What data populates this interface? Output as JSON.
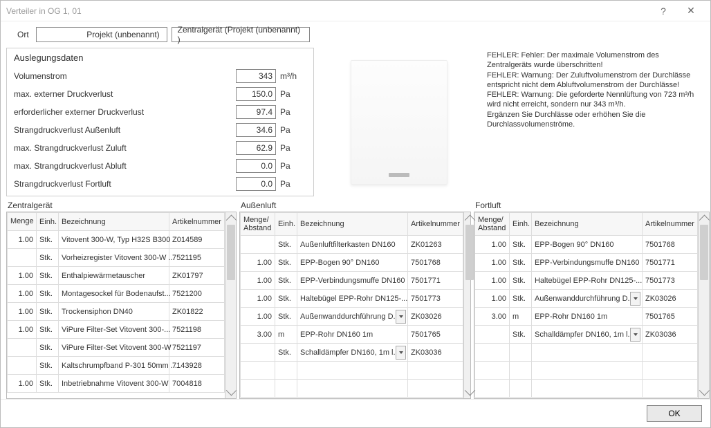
{
  "window_title": "Verteiler in OG 1, 01",
  "toolbar": {
    "ort_label": "Ort",
    "projekt": "Projekt (unbenannt)",
    "zentralgeraet": "Zentralgerät (Projekt (unbenannt) )"
  },
  "auslegung": {
    "heading": "Auslegungsdaten",
    "rows": [
      {
        "label": "Volumenstrom",
        "value": "343",
        "unit": "m³/h"
      },
      {
        "label": "max. externer Druckverlust",
        "value": "150.0",
        "unit": "Pa"
      },
      {
        "label": "erforderlicher externer Druckverlust",
        "value": "97.4",
        "unit": "Pa"
      },
      {
        "label": "Strangdruckverlust Außenluft",
        "value": "34.6",
        "unit": "Pa"
      },
      {
        "label": "max. Strangdruckverlust Zuluft",
        "value": "62.9",
        "unit": "Pa"
      },
      {
        "label": "max. Strangdruckverlust Abluft",
        "value": "0.0",
        "unit": "Pa"
      },
      {
        "label": "Strangdruckverlust Fortluft",
        "value": "0.0",
        "unit": "Pa"
      }
    ]
  },
  "errors_text": "FEHLER: Fehler: Der maximale Volumenstrom des Zentralgeräts wurde überschritten!\nFEHLER: Warnung: Der Zuluftvolumenstrom der Durchlässe entspricht nicht dem Abluftvolumenstrom der Durchlässe!\nFEHLER: Warnung: Die geforderte Nennlüftung von 723 m³/h wird nicht erreicht, sondern nur 343 m³/h.\nErgänzen Sie Durchlässe oder erhöhen Sie die Durchlassvolumenströme.",
  "tables": {
    "headers": {
      "menge": "Menge",
      "menge_abstand": "Menge/\nAbstand",
      "einh": "Einh.",
      "bezeichnung": "Bezeichnung",
      "artikelnummer": "Artikelnummer"
    },
    "zentral": {
      "title": "Zentralgerät",
      "rows": [
        {
          "menge": "1.00",
          "einh": "Stk.",
          "bez": "Vitovent 300-W, Typ H32S B300",
          "art": "Z014589"
        },
        {
          "menge": "",
          "einh": "Stk.",
          "bez": "Vorheizregister Vitovent 300-W ...",
          "art": "7521195"
        },
        {
          "menge": "1.00",
          "einh": "Stk.",
          "bez": "Enthalpiewärmetauscher",
          "art": "ZK01797"
        },
        {
          "menge": "1.00",
          "einh": "Stk.",
          "bez": "Montagesockel für Bodenaufst...",
          "art": "7521200"
        },
        {
          "menge": "1.00",
          "einh": "Stk.",
          "bez": "Trockensiphon DN40",
          "art": "ZK01822"
        },
        {
          "menge": "1.00",
          "einh": "Stk.",
          "bez": "ViPure Filter-Set Vitovent 300-...",
          "art": "7521198"
        },
        {
          "menge": "",
          "einh": "Stk.",
          "bez": "ViPure Filter-Set Vitovent 300-W",
          "art": "7521197"
        },
        {
          "menge": "",
          "einh": "Stk.",
          "bez": "Kaltschrumpfband P-301 50mm ...",
          "art": "7143928"
        },
        {
          "menge": "1.00",
          "einh": "Stk.",
          "bez": "Inbetriebnahme Vitovent 300-W",
          "art": "7004818"
        }
      ]
    },
    "aussen": {
      "title": "Außenluft",
      "rows": [
        {
          "menge": "",
          "einh": "Stk.",
          "bez": "Außenluftfilterkasten DN160",
          "art": "ZK01263",
          "dd": false
        },
        {
          "menge": "1.00",
          "einh": "Stk.",
          "bez": "EPP-Bogen 90° DN160",
          "art": "7501768",
          "dd": false
        },
        {
          "menge": "1.00",
          "einh": "Stk.",
          "bez": "EPP-Verbindungsmuffe DN160",
          "art": "7501771",
          "dd": false
        },
        {
          "menge": "1.00",
          "einh": "Stk.",
          "bez": "Haltebügel EPP-Rohr DN125-...",
          "art": "7501773",
          "dd": false
        },
        {
          "menge": "1.00",
          "einh": "Stk.",
          "bez": "Außenwanddurchführung D...",
          "art": "ZK03026",
          "dd": true
        },
        {
          "menge": "3.00",
          "einh": "m",
          "bez": "EPP-Rohr DN160 1m",
          "art": "7501765",
          "dd": false
        },
        {
          "menge": "",
          "einh": "Stk.",
          "bez": "Schalldämpfer DN160, 1m l...",
          "art": "ZK03036",
          "dd": true
        },
        {
          "menge": "",
          "einh": "",
          "bez": "",
          "art": "",
          "dd": false
        },
        {
          "menge": "",
          "einh": "",
          "bez": "",
          "art": "",
          "dd": false
        }
      ]
    },
    "fort": {
      "title": "Fortluft",
      "rows": [
        {
          "menge": "1.00",
          "einh": "Stk.",
          "bez": "EPP-Bogen 90° DN160",
          "art": "7501768",
          "dd": false
        },
        {
          "menge": "1.00",
          "einh": "Stk.",
          "bez": "EPP-Verbindungsmuffe DN160",
          "art": "7501771",
          "dd": false
        },
        {
          "menge": "1.00",
          "einh": "Stk.",
          "bez": "Haltebügel EPP-Rohr DN125-...",
          "art": "7501773",
          "dd": false
        },
        {
          "menge": "1.00",
          "einh": "Stk.",
          "bez": "Außenwanddurchführung D...",
          "art": "ZK03026",
          "dd": true
        },
        {
          "menge": "3.00",
          "einh": "m",
          "bez": "EPP-Rohr DN160 1m",
          "art": "7501765",
          "dd": false
        },
        {
          "menge": "",
          "einh": "Stk.",
          "bez": "Schalldämpfer DN160, 1m l...",
          "art": "ZK03036",
          "dd": true
        },
        {
          "menge": "",
          "einh": "",
          "bez": "",
          "art": "",
          "dd": false
        },
        {
          "menge": "",
          "einh": "",
          "bez": "",
          "art": "",
          "dd": false
        },
        {
          "menge": "",
          "einh": "",
          "bez": "",
          "art": "",
          "dd": false
        }
      ]
    }
  },
  "ok_label": "OK",
  "col_widths": {
    "zentral": [
      42,
      32,
      160,
      80
    ],
    "other": [
      50,
      32,
      160,
      80
    ]
  }
}
